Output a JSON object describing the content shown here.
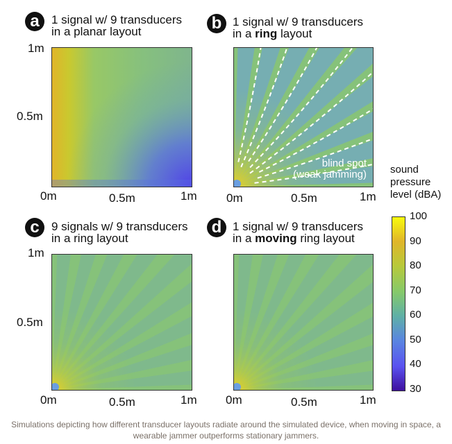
{
  "panels": [
    {
      "letter": "a",
      "title_line1": "1 signal w/ 9 transducers",
      "title_line2_pre": "in a ",
      "title_line2_bold": "",
      "title_line2_post": "planar layout"
    },
    {
      "letter": "b",
      "title_line1": "1 signal w/ 9 transducers",
      "title_line2_pre": "in a ",
      "title_line2_bold": "ring",
      "title_line2_post": " layout",
      "annotation_line1": "blind spot",
      "annotation_line2": "(weak jamming)"
    },
    {
      "letter": "c",
      "title_line1": "9 signals w/ 9 transducers",
      "title_line2_pre": "in a ring layout",
      "title_line2_bold": "",
      "title_line2_post": ""
    },
    {
      "letter": "d",
      "title_line1": "1 signal w/ 9 transducers",
      "title_line2_pre": "in a ",
      "title_line2_bold": "moving",
      "title_line2_post": " ring layout"
    }
  ],
  "axis": {
    "x_ticks": [
      "0m",
      "0.5m",
      "1m"
    ],
    "y_ticks": [
      "1m",
      "0.5m"
    ]
  },
  "colorbar": {
    "title_line1": "sound",
    "title_line2": "pressure",
    "title_line3": "level (dBA)",
    "ticks": [
      "100",
      "90",
      "80",
      "70",
      "60",
      "50",
      "40",
      "30"
    ]
  },
  "caption": "Simulations depicting how different transducer layouts radiate around the simulated device, when moving in space, a wearable jammer outperforms stationary jammers.",
  "chart_data": {
    "type": "heatmap",
    "xlabel": "",
    "ylabel": "",
    "xlim": [
      0,
      1
    ],
    "ylim": [
      0,
      1
    ],
    "color_range": [
      30,
      100
    ],
    "color_label": "sound pressure level (dBA)",
    "panels": [
      {
        "id": "a",
        "title": "1 signal w/ 9 transducers in a planar layout",
        "pattern": "high (~85-90) near left edge, decaying to ~40 at bottom-right"
      },
      {
        "id": "b",
        "title": "1 signal w/ 9 transducers in a ring layout",
        "pattern": "radial fan of alternating ~75 and ~55 beams from origin, with blind spots (weak jamming)"
      },
      {
        "id": "c",
        "title": "9 signals w/ 9 transducers in a ring layout",
        "pattern": "mostly uniform ~68-72 with faint radial beams"
      },
      {
        "id": "d",
        "title": "1 signal w/ 9 transducers in a moving ring layout",
        "pattern": "mostly uniform ~70 with faint radial beams"
      }
    ]
  },
  "colors": {
    "base_green": "#86c27a",
    "yellow": "#f9fb0e",
    "purple": "#3e0f9e"
  }
}
